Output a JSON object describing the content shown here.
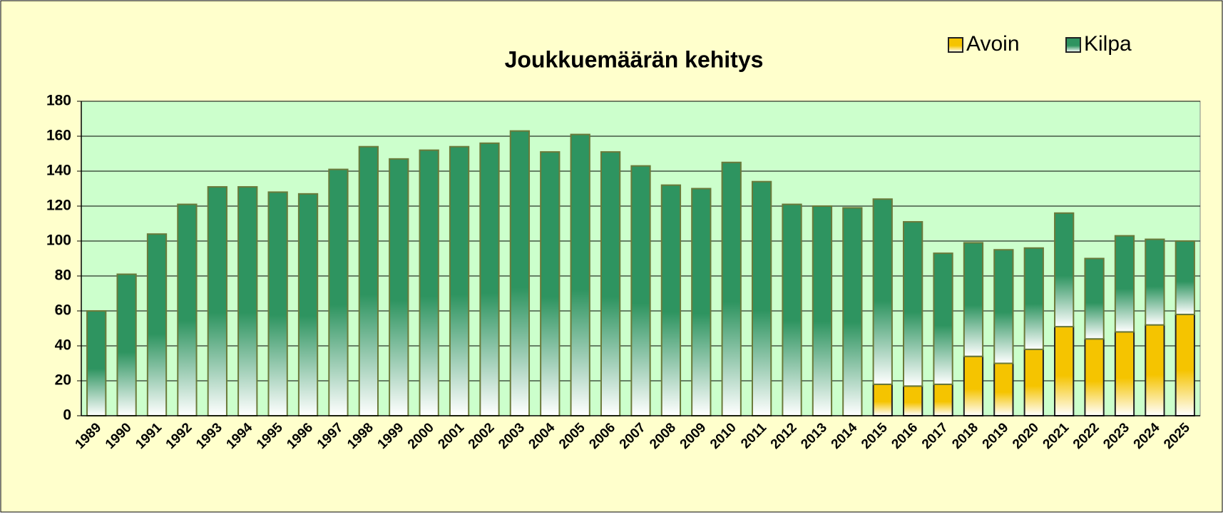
{
  "chart_data": {
    "type": "stacked-bar",
    "title": "Joukkuemäärän kehitys",
    "categories": [
      "1989",
      "1990",
      "1991",
      "1992",
      "1993",
      "1994",
      "1995",
      "1996",
      "1997",
      "1998",
      "1999",
      "2000",
      "2001",
      "2002",
      "2003",
      "2004",
      "2005",
      "2006",
      "2007",
      "2008",
      "2009",
      "2010",
      "2011",
      "2012",
      "2013",
      "2014",
      "2015",
      "2016",
      "2017",
      "2018",
      "2019",
      "2020",
      "2021",
      "2022",
      "2023",
      "2024",
      "2025"
    ],
    "series": [
      {
        "name": "Avoin",
        "color": "#f5c400",
        "values": [
          0,
          0,
          0,
          0,
          0,
          0,
          0,
          0,
          0,
          0,
          0,
          0,
          0,
          0,
          0,
          0,
          0,
          0,
          0,
          0,
          0,
          0,
          0,
          0,
          0,
          0,
          18,
          17,
          18,
          34,
          30,
          38,
          51,
          44,
          48,
          52,
          58
        ]
      },
      {
        "name": "Kilpa",
        "color": "#2e9460",
        "values": [
          60,
          81,
          104,
          121,
          131,
          131,
          128,
          127,
          141,
          154,
          147,
          152,
          154,
          156,
          163,
          151,
          161,
          151,
          143,
          132,
          130,
          145,
          134,
          121,
          120,
          119,
          106,
          94,
          75,
          65,
          65,
          58,
          65,
          46,
          55,
          49,
          42
        ]
      }
    ],
    "ylim": [
      0,
      180
    ],
    "yticks": [
      0,
      20,
      40,
      60,
      80,
      100,
      120,
      140,
      160,
      180
    ],
    "grid": true,
    "legend": "top-right"
  }
}
